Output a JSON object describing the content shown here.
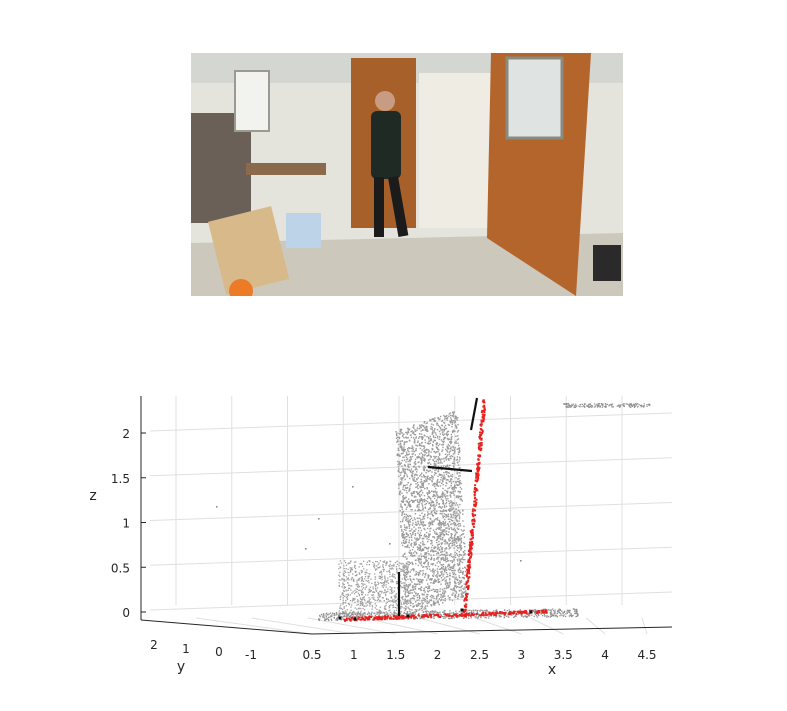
{
  "photo": {
    "caption": "",
    "wall_color": "#e6e6e0",
    "door_color": "#b0642a",
    "floor_color": "#cfc9bd"
  },
  "chart_data": {
    "type": "scatter",
    "projection": "3d",
    "title": "",
    "xlabel": "x",
    "ylabel": "y",
    "zlabel": "z",
    "x_ticks": [
      "0.5",
      "1",
      "1.5",
      "2",
      "2.5",
      "3",
      "3.5",
      "4",
      "4.5"
    ],
    "y_ticks": [
      "2",
      "1",
      "0",
      "-1"
    ],
    "z_ticks": [
      "0",
      "0.5",
      "1",
      "1.5",
      "2"
    ],
    "xlim": [
      0.3,
      4.8
    ],
    "ylim": [
      -1.5,
      2.5
    ],
    "zlim": [
      -0.1,
      2.4
    ],
    "grid": true,
    "colors": {
      "cloud": "#8c8c8c",
      "red": "#e8201e",
      "black": "#111111",
      "grid": "#e0e0e0",
      "axis": "#262626"
    },
    "series": [
      {
        "marker_color": "gray",
        "points": [
          [
            1.2,
            0.0,
            0.1
          ],
          [
            1.3,
            0.0,
            0.35
          ],
          [
            1.4,
            0.0,
            0.55
          ],
          [
            1.8,
            0.0,
            0.5
          ],
          [
            2.0,
            0.1,
            1.2
          ],
          [
            2.1,
            0.1,
            1.9
          ],
          [
            2.3,
            0.0,
            2.35
          ],
          [
            4.2,
            0.0,
            2.3
          ]
        ]
      },
      {
        "marker_color": "red",
        "points": [
          [
            0.9,
            0.0,
            0.0
          ],
          [
            1.5,
            0.0,
            0.0
          ],
          [
            2.4,
            0.0,
            0.0
          ],
          [
            3.1,
            0.0,
            0.0
          ],
          [
            2.45,
            0.0,
            0.5
          ],
          [
            2.5,
            0.0,
            1.2
          ],
          [
            2.55,
            0.0,
            2.4
          ]
        ]
      },
      {
        "marker_color": "black",
        "points": [
          [
            1.55,
            0.0,
            0.0
          ],
          [
            1.55,
            0.0,
            0.45
          ],
          [
            2.0,
            0.0,
            1.6
          ],
          [
            2.5,
            0.0,
            1.55
          ]
        ]
      }
    ]
  }
}
